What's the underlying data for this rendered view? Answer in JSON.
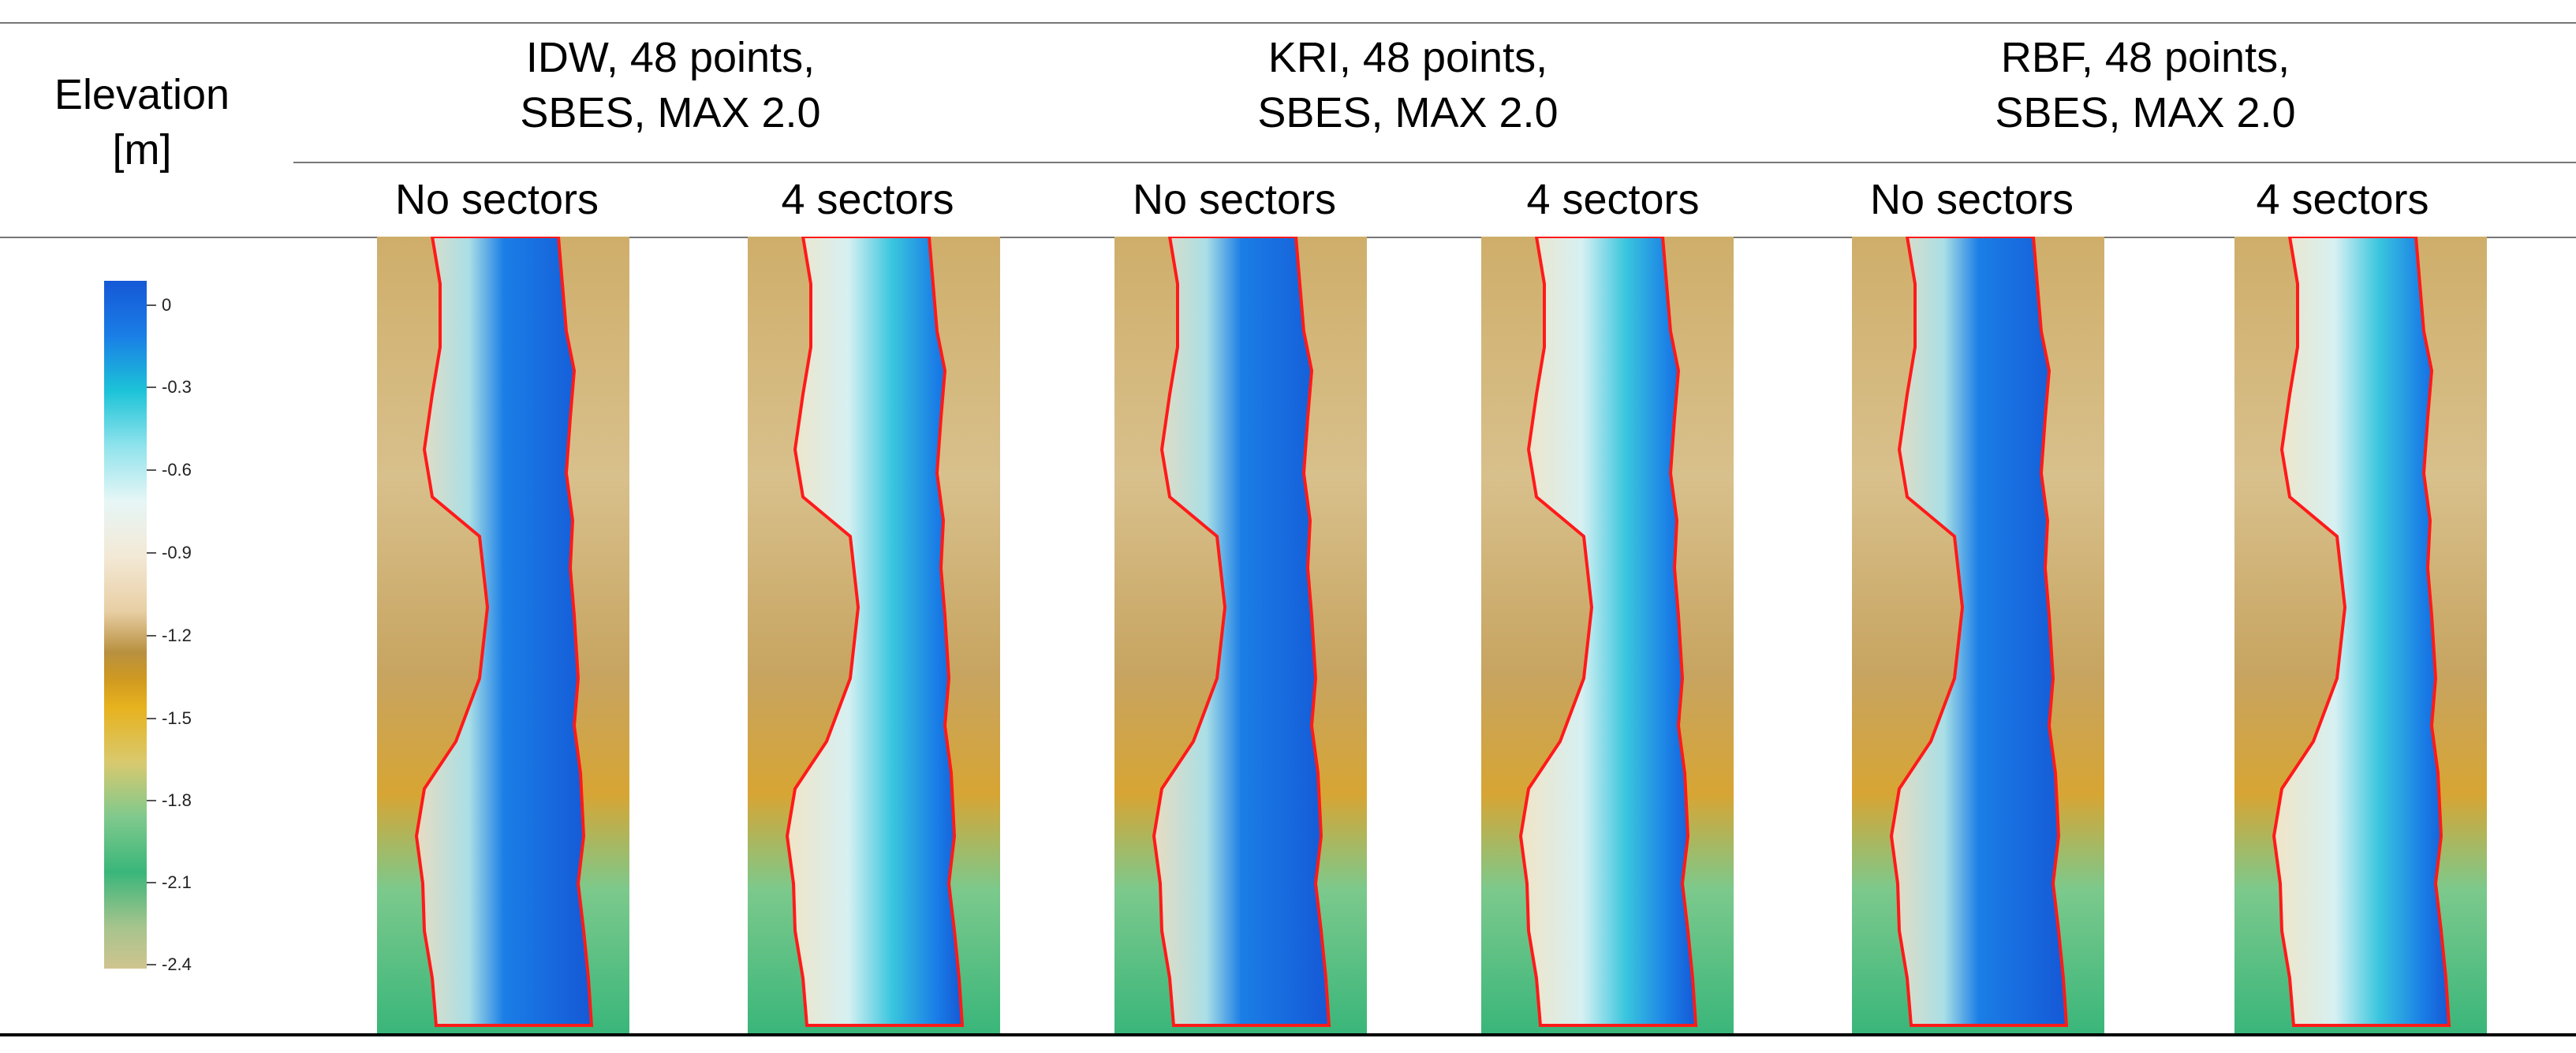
{
  "header": {
    "elevation_label_line1": "Elevation",
    "elevation_label_line2": "[m]",
    "groups": [
      {
        "line1": "IDW, 48 points,",
        "line2": "SBES, MAX 2.0"
      },
      {
        "line1": "KRI, 48 points,",
        "line2": "SBES, MAX 2.0"
      },
      {
        "line1": "RBF, 48 points,",
        "line2": "SBES, MAX 2.0"
      }
    ],
    "subheaders": [
      "No sectors",
      "4 sectors",
      "No sectors",
      "4 sectors",
      "No sectors",
      "4 sectors"
    ]
  },
  "legend": {
    "ticks": [
      "0",
      "-0.3",
      "-0.6",
      "-0.9",
      "-1.2",
      "-1.5",
      "-1.8",
      "-2.1",
      "-2.4"
    ],
    "colors": {
      "deep_blue": "#1558d6",
      "cyan": "#1cc3d8",
      "white": "#e6f6f6",
      "tan": "#e8cfa4",
      "gold": "#e7b21e",
      "green": "#3ab67a",
      "olive": "#cfc48f"
    }
  },
  "outline_color": "#ff1a1a"
}
